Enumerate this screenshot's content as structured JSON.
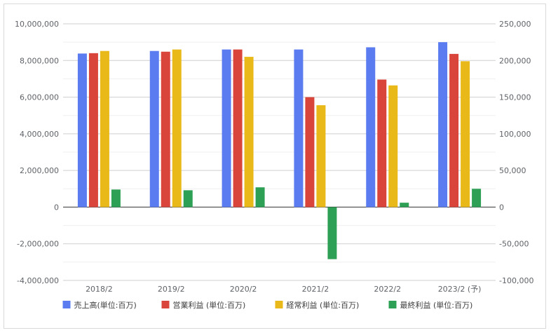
{
  "chart_data": {
    "type": "bar",
    "categories": [
      "2018/2",
      "2019/2",
      "2020/2",
      "2021/2",
      "2022/2",
      "2023/2 (予)"
    ],
    "left_axis": {
      "ylim": [
        -4000000,
        10000000
      ],
      "ticks": [
        {
          "v": 10000000,
          "label": "10,000,000"
        },
        {
          "v": 8000000,
          "label": "8,000,000"
        },
        {
          "v": 6000000,
          "label": "6,000,000"
        },
        {
          "v": 4000000,
          "label": "4,000,000"
        },
        {
          "v": 2000000,
          "label": "2,000,000"
        },
        {
          "v": 0,
          "label": "0"
        },
        {
          "v": -2000000,
          "label": "-2,000,000"
        },
        {
          "v": -4000000,
          "label": "-4,000,000"
        }
      ]
    },
    "right_axis": {
      "ylim": [
        -100000,
        250000
      ],
      "ticks": [
        {
          "v": 250000,
          "label": "250,000"
        },
        {
          "v": 200000,
          "label": "200,000"
        },
        {
          "v": 150000,
          "label": "150,000"
        },
        {
          "v": 100000,
          "label": "100,000"
        },
        {
          "v": 50000,
          "label": "50,000"
        },
        {
          "v": 0,
          "label": "0"
        },
        {
          "v": -50000,
          "label": "-50,000"
        },
        {
          "v": -100000,
          "label": "-100,000"
        }
      ]
    },
    "series": [
      {
        "name": "売上高(単位:百万)",
        "color": "#5b7cf0",
        "axis": "left",
        "values": [
          8380000,
          8520000,
          8600000,
          8600000,
          8720000,
          9000000
        ]
      },
      {
        "name": "営業利益 (単位:百万)",
        "color": "#d9453a",
        "axis": "right",
        "values": [
          210000,
          212000,
          215000,
          150000,
          174000,
          209000
        ]
      },
      {
        "name": "経常利益 (単位:百万)",
        "color": "#e9b919",
        "axis": "right",
        "values": [
          213000,
          215000,
          205000,
          139000,
          166000,
          199000
        ]
      },
      {
        "name": "最終利益 (単位:百万)",
        "color": "#2ea055",
        "axis": "right",
        "values": [
          24000,
          23000,
          27000,
          -71000,
          6000,
          25000
        ]
      }
    ],
    "grid": true,
    "minor_grid": true,
    "legend_position": "bottom"
  }
}
